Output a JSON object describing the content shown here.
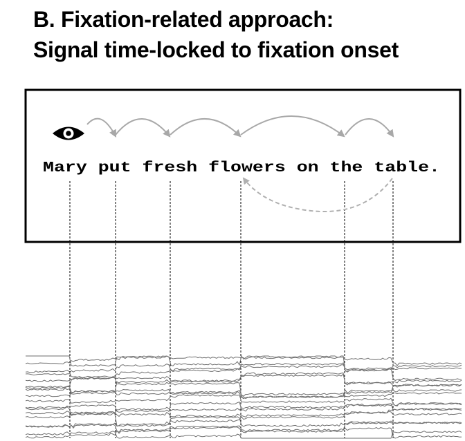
{
  "title": {
    "line1": "B. Fixation-related approach:",
    "line2": "Signal time-locked to fixation onset"
  },
  "sentence": {
    "text": "Mary put fresh flowers on the table.",
    "words": [
      "Mary",
      "put",
      "fresh",
      "flowers",
      "on",
      "the",
      "table."
    ]
  },
  "colors": {
    "frame": "#000000",
    "saccade_arrow": "#a8a8a8",
    "regression_arrow": "#b0b0b0",
    "eeg_trace": "#6e6e6e",
    "marker_line": "#000000"
  },
  "icons": {
    "reader": "eye-icon"
  }
}
